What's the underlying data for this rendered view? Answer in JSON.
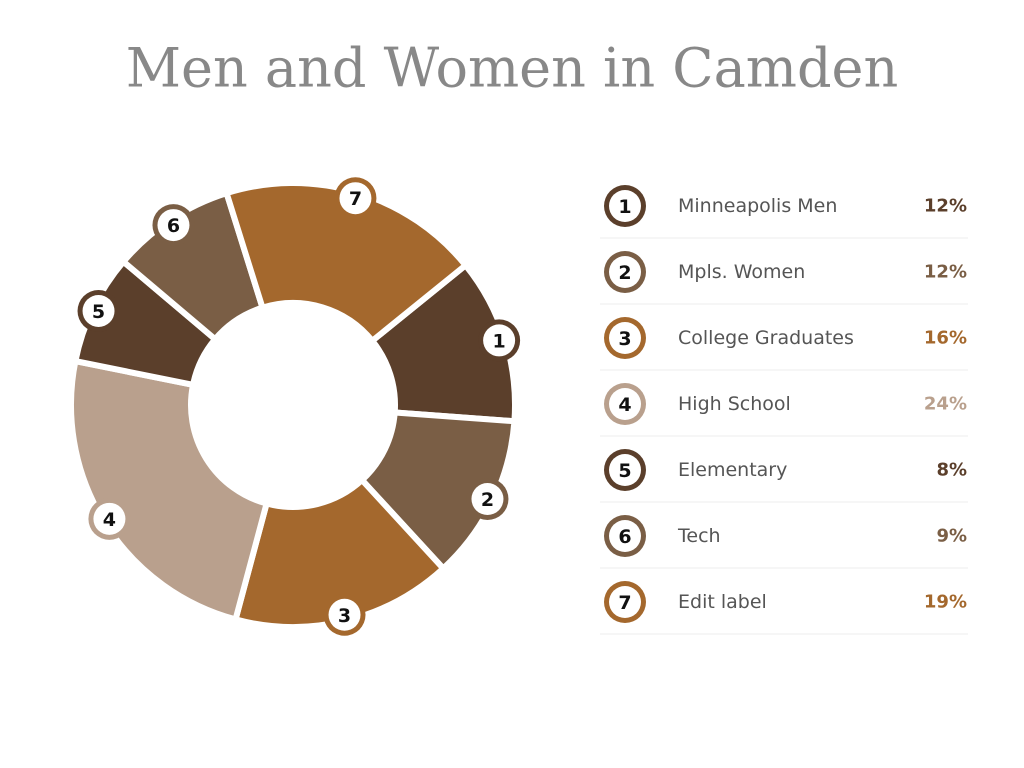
{
  "chart_data": {
    "type": "donut",
    "title": "Men and Women in Camden",
    "categories": [
      "Minneapolis Men",
      "Mpls. Women",
      "College Graduates",
      "High School",
      "Elementary",
      "Tech",
      "Edit label"
    ],
    "markers": [
      "1",
      "2",
      "3",
      "4",
      "5",
      "6",
      "7"
    ],
    "values": [
      12,
      12,
      16,
      24,
      8,
      9,
      19
    ],
    "value_labels": [
      "12%",
      "12%",
      "16%",
      "24%",
      "8%",
      "9%",
      "19%"
    ],
    "colors": [
      "#5b3f2b",
      "#7a5e45",
      "#a4682d",
      "#b9a08d",
      "#5b3f2b",
      "#7a5e45",
      "#a4682d"
    ]
  }
}
